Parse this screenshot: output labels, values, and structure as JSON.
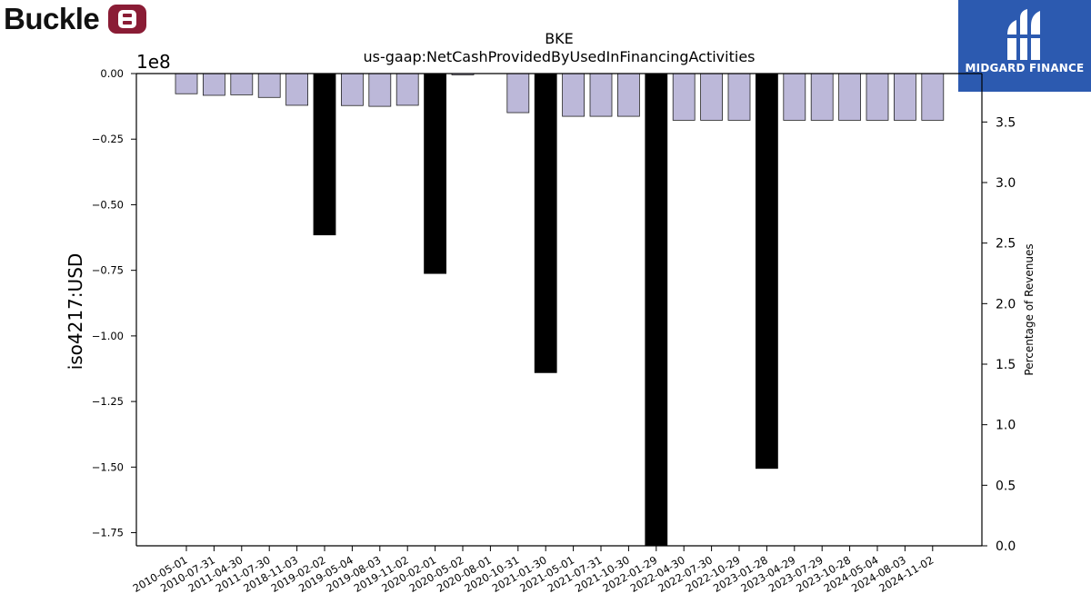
{
  "logos": {
    "left_brand": "Buckle",
    "right_brand": "MIDGARD FINANCE"
  },
  "chart_data": {
    "type": "bar",
    "title": "BKE",
    "subtitle": "us-gaap:NetCashProvidedByUsedInFinancingActivities",
    "ylabel": "iso4217:USD",
    "y_offset_label": "1e8",
    "y2label": "Percentage of Revenues",
    "ylim": [
      -1.8,
      0.0
    ],
    "yticks": [
      "0.00",
      "−0.25",
      "−0.50",
      "−0.75",
      "−1.00",
      "−1.25",
      "−1.50",
      "−1.75"
    ],
    "yticks_values": [
      0.0,
      -0.25,
      -0.5,
      -0.75,
      -1.0,
      -1.25,
      -1.5,
      -1.75
    ],
    "y2lim": [
      0.0,
      3.9
    ],
    "y2ticks": [
      "0.0",
      "0.5",
      "1.0",
      "1.5",
      "2.0",
      "2.5",
      "3.0",
      "3.5"
    ],
    "y2ticks_values": [
      0.0,
      0.5,
      1.0,
      1.5,
      2.0,
      2.5,
      3.0,
      3.5
    ],
    "categories": [
      "2010-05-01",
      "2010-07-31",
      "2011-04-30",
      "2011-07-30",
      "2018-11-03",
      "2019-02-02",
      "2019-05-04",
      "2019-08-03",
      "2019-11-02",
      "2020-02-01",
      "2020-05-02",
      "2020-08-01",
      "2020-10-31",
      "2021-01-30",
      "2021-05-01",
      "2021-07-31",
      "2021-10-30",
      "2022-01-29",
      "2022-04-30",
      "2022-07-30",
      "2022-10-29",
      "2023-01-28",
      "2023-04-29",
      "2023-07-29",
      "2023-10-28",
      "2024-05-04",
      "2024-08-03",
      "2024-11-02"
    ],
    "series": [
      {
        "name": "",
        "color": "#bcb8d9",
        "edge": "#222222",
        "values": [
          -0.077,
          -0.083,
          -0.081,
          -0.091,
          -0.121,
          -0.615,
          -0.122,
          -0.125,
          -0.121,
          -0.762,
          -0.005,
          null,
          -0.149,
          -1.14,
          -0.163,
          -0.163,
          -0.163,
          -1.85,
          -0.178,
          -0.178,
          -0.178,
          -1.505,
          -0.178,
          -0.178,
          -0.178,
          -0.178,
          -0.178,
          -0.178
        ],
        "highlight_color": "#000000",
        "highlighted": [
          false,
          false,
          false,
          false,
          false,
          true,
          false,
          false,
          false,
          true,
          false,
          false,
          false,
          true,
          false,
          false,
          false,
          true,
          false,
          false,
          false,
          true,
          false,
          false,
          false,
          false,
          false,
          false
        ]
      }
    ],
    "grid": false,
    "legend": "none"
  }
}
